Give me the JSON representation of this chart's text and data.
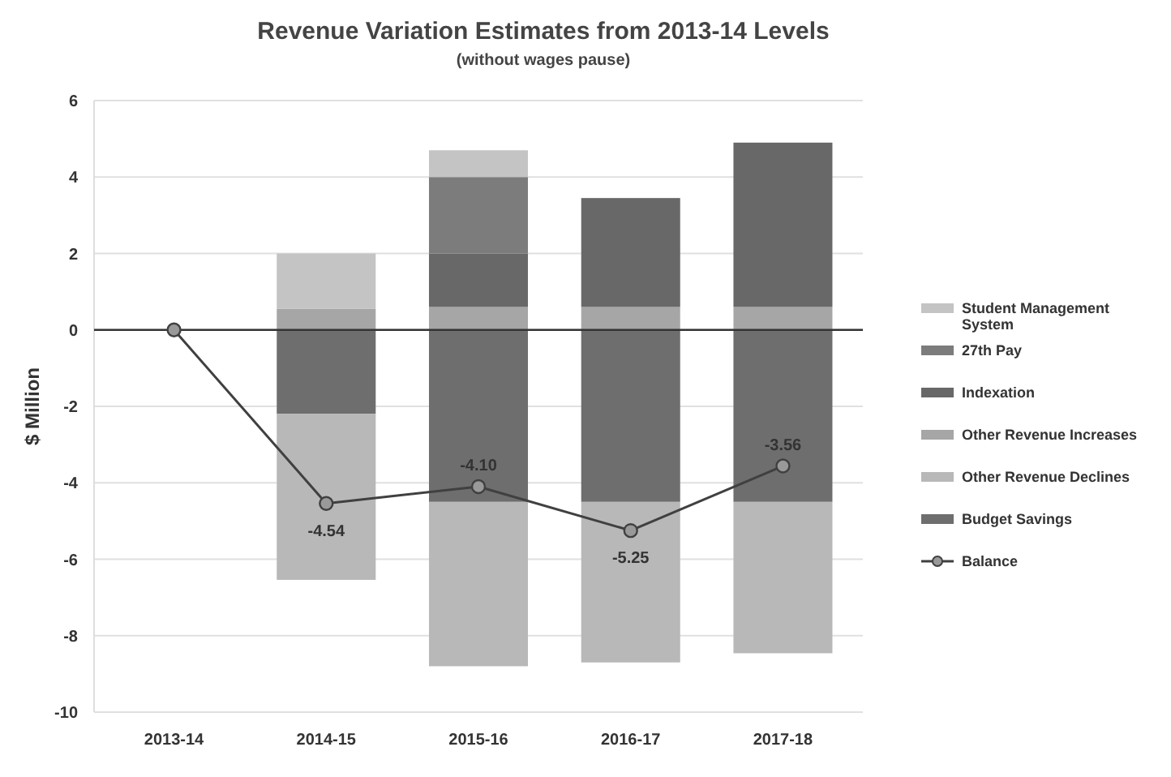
{
  "chart_data": {
    "type": "bar",
    "stacked": true,
    "title": "Revenue Variation Estimates from 2013-14 Levels",
    "subtitle": "(without wages pause)",
    "ylabel": "$ Million",
    "categories": [
      "2013-14",
      "2014-15",
      "2015-16",
      "2016-17",
      "2017-18"
    ],
    "series": [
      {
        "name": "Budget Savings",
        "color": "#6e6e6e",
        "values": [
          0,
          -2.2,
          -4.5,
          -4.5,
          -4.5
        ]
      },
      {
        "name": "Other Revenue Declines",
        "color": "#b8b8b8",
        "values": [
          0,
          -4.34,
          -4.3,
          -4.2,
          -3.96
        ]
      },
      {
        "name": "Other Revenue Increases",
        "color": "#a6a6a6",
        "values": [
          0,
          0.55,
          0.6,
          0.6,
          0.6
        ]
      },
      {
        "name": "Indexation",
        "color": "#686868",
        "values": [
          0,
          0,
          1.4,
          2.85,
          4.3
        ]
      },
      {
        "name": "27th Pay",
        "color": "#7c7c7c",
        "values": [
          0,
          0,
          2.0,
          0,
          0
        ]
      },
      {
        "name": "Student Management System",
        "color": "#c4c4c4",
        "values": [
          0,
          1.45,
          0.7,
          0,
          0
        ]
      },
      {
        "name": "Balance",
        "type": "line",
        "color": "#404040",
        "marker": "circle",
        "values": [
          0,
          -4.54,
          -4.1,
          -5.25,
          -3.56
        ],
        "value_labels": [
          null,
          "-4.54",
          "-4.10",
          "-5.25",
          "-3.56"
        ]
      }
    ],
    "ylim": [
      -10,
      6
    ],
    "yticks": [
      -10,
      -8,
      -6,
      -4,
      -2,
      0,
      2,
      4,
      6
    ],
    "grid": "y",
    "legend": "right"
  }
}
